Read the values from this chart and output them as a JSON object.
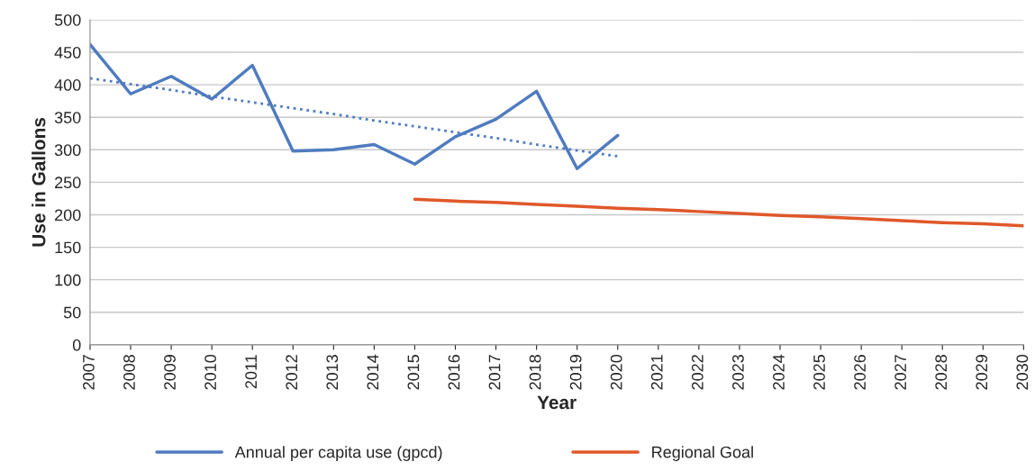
{
  "chart_data": {
    "type": "line",
    "xlabel": "Year",
    "ylabel": "Use in Gallons",
    "categories": [
      "2007",
      "2008",
      "2009",
      "2010",
      "2011",
      "2012",
      "2013",
      "2014",
      "2015",
      "2016",
      "2017",
      "2018",
      "2019",
      "2020",
      "2021",
      "2022",
      "2023",
      "2024",
      "2025",
      "2026",
      "2027",
      "2028",
      "2029",
      "2030"
    ],
    "series": [
      {
        "name": "Annual per capita use (gpcd)",
        "color": "#4f7bc0",
        "values": [
          462,
          386,
          413,
          378,
          430,
          298,
          300,
          308,
          278,
          320,
          347,
          390,
          271,
          322,
          null,
          null,
          null,
          null,
          null,
          null,
          null,
          null,
          null,
          null
        ]
      },
      {
        "color": "#4f7bc0",
        "line_style": "dotted",
        "values": [
          410,
          401,
          392,
          382,
          373,
          364,
          355,
          345,
          336,
          327,
          318,
          308,
          299,
          290,
          null,
          null,
          null,
          null,
          null,
          null,
          null,
          null,
          null,
          null
        ]
      },
      {
        "name": "Regional Goal",
        "color": "#e0582a",
        "values": [
          null,
          null,
          null,
          null,
          null,
          null,
          null,
          null,
          224,
          221,
          219,
          216,
          213,
          210,
          208,
          205,
          202,
          199,
          197,
          194,
          191,
          188,
          186,
          183
        ]
      }
    ],
    "ylim": [
      0,
      500
    ],
    "yticks": [
      0,
      50,
      100,
      150,
      200,
      250,
      300,
      350,
      400,
      450,
      500
    ],
    "grid": "y",
    "legend": "bottom",
    "line_style": "solid",
    "marker": "none"
  }
}
